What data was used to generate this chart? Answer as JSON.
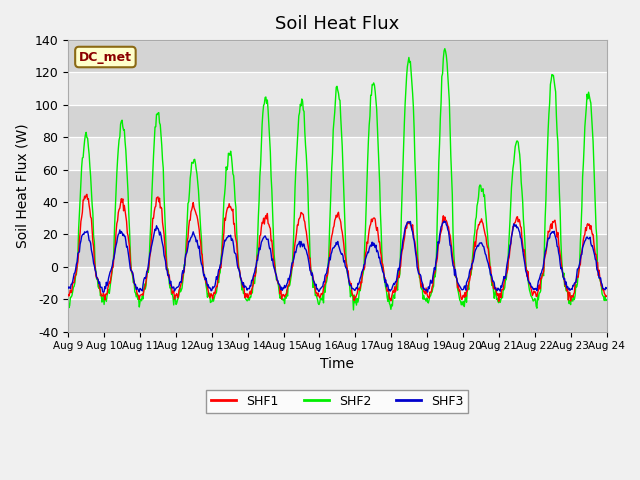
{
  "title": "Soil Heat Flux",
  "xlabel": "Time",
  "ylabel": "Soil Heat Flux (W)",
  "ylim": [
    -40,
    140
  ],
  "annotation": "DC_met",
  "legend_labels": [
    "SHF1",
    "SHF2",
    "SHF3"
  ],
  "line_colors": [
    "#ff0000",
    "#00ee00",
    "#0000cc"
  ],
  "yticks": [
    -40,
    -20,
    0,
    20,
    40,
    60,
    80,
    100,
    120,
    140
  ],
  "xtick_labels": [
    "Aug 9",
    "Aug 10",
    "Aug 11",
    "Aug 12",
    "Aug 13",
    "Aug 14",
    "Aug 15",
    "Aug 16",
    "Aug 17",
    "Aug 18",
    "Aug 19",
    "Aug 20",
    "Aug 21",
    "Aug 22",
    "Aug 23",
    "Aug 24"
  ],
  "num_days": 15,
  "points_per_day": 48
}
